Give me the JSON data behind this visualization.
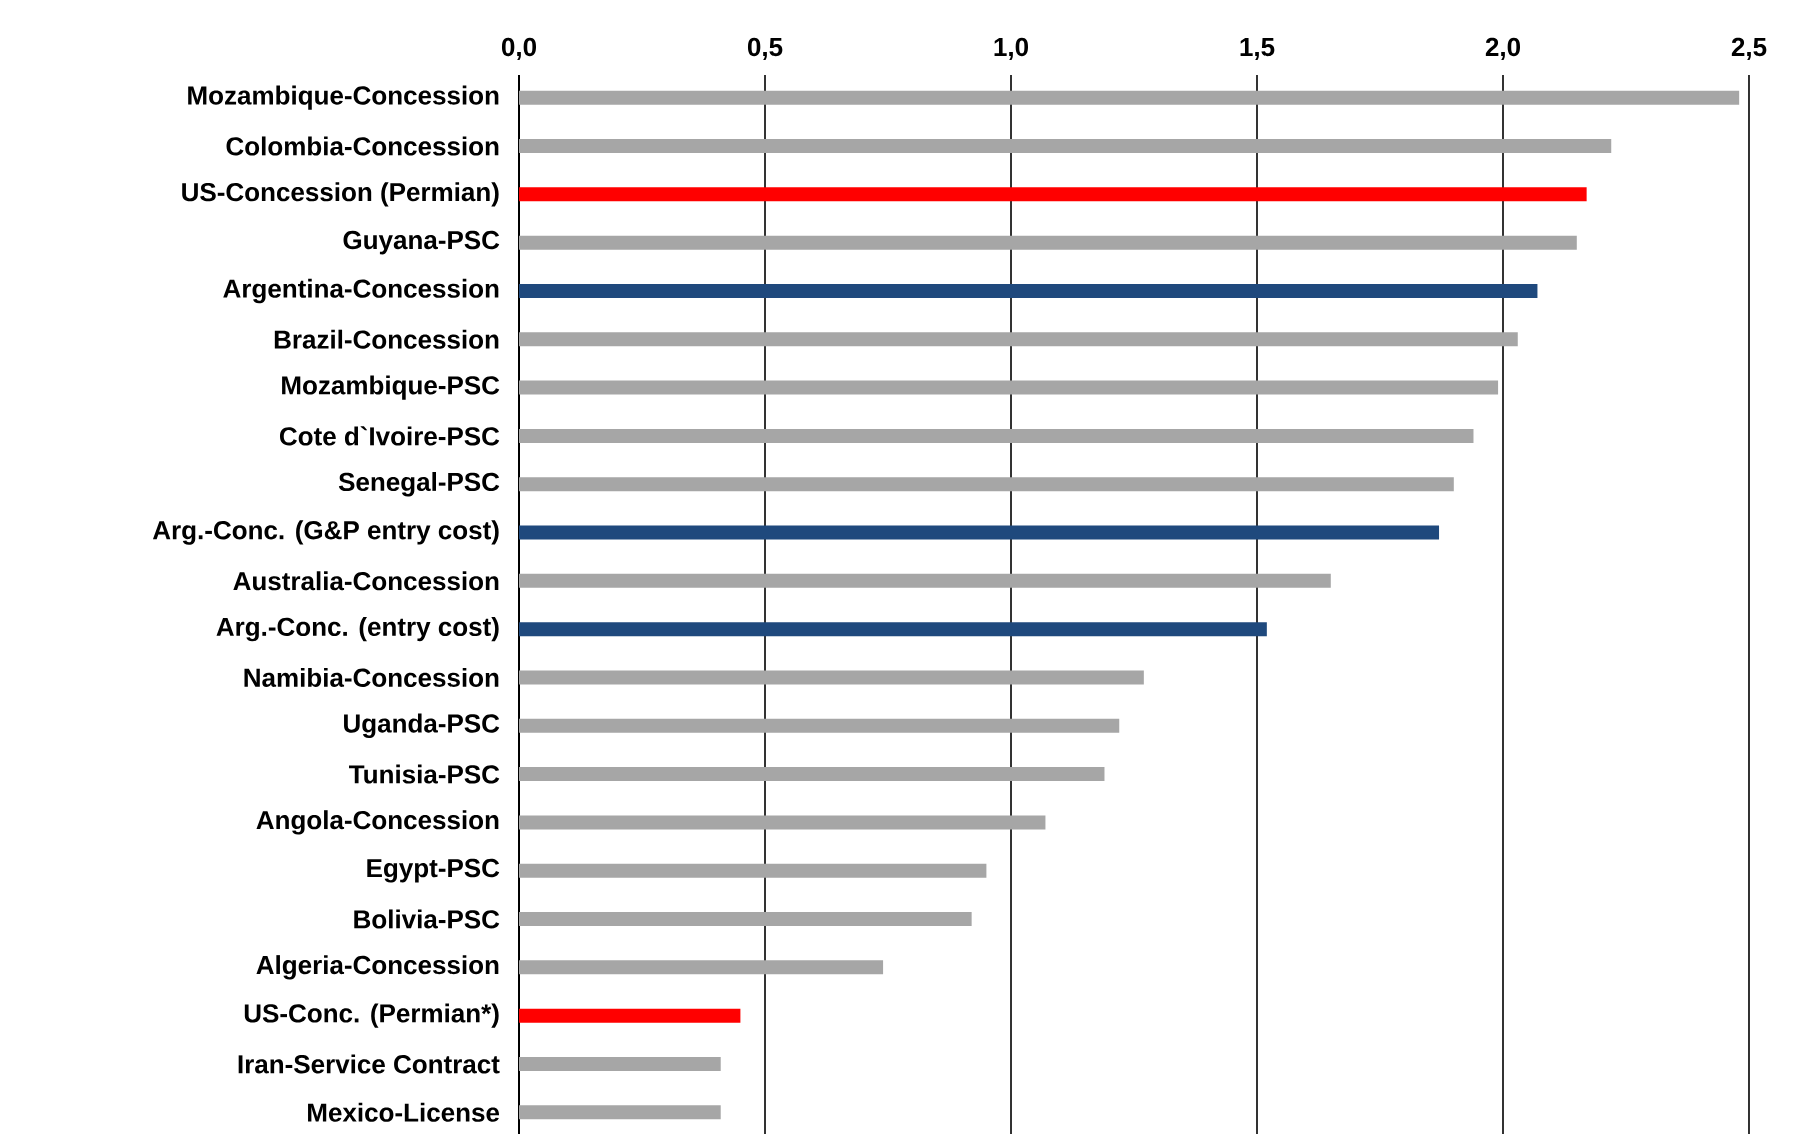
{
  "chart_data": {
    "type": "bar",
    "orientation": "horizontal",
    "categories": [
      "Mozambique-Concession",
      "Colombia-Concession",
      "US-Concession (Permian)",
      "Guyana-PSC",
      "Argentina-Concession",
      "Brazil-Concession",
      "Mozambique-PSC",
      "Cote d`Ivoire-PSC",
      "Senegal-PSC",
      "Arg.-Conc. (G&P entry cost)",
      "Australia-Concession",
      "Arg.-Conc. (entry cost)",
      "Namibia-Concession",
      "Uganda-PSC",
      "Tunisia-PSC",
      "Angola-Concession",
      "Egypt-PSC",
      "Bolivia-PSC",
      "Algeria-Concession",
      "US-Conc. (Permian*)",
      "Iran-Service Contract",
      "Mexico-License"
    ],
    "values": [
      2.48,
      2.22,
      2.17,
      2.15,
      2.07,
      2.03,
      1.99,
      1.94,
      1.9,
      1.87,
      1.65,
      1.52,
      1.27,
      1.22,
      1.19,
      1.07,
      0.95,
      0.92,
      0.74,
      0.45,
      0.41,
      0.41
    ],
    "colors": [
      "#a6a6a6",
      "#a6a6a6",
      "#ff0000",
      "#a6a6a6",
      "#1f497d",
      "#a6a6a6",
      "#a6a6a6",
      "#a6a6a6",
      "#a6a6a6",
      "#1f497d",
      "#a6a6a6",
      "#1f497d",
      "#a6a6a6",
      "#a6a6a6",
      "#a6a6a6",
      "#a6a6a6",
      "#a6a6a6",
      "#a6a6a6",
      "#a6a6a6",
      "#ff0000",
      "#a6a6a6",
      "#a6a6a6"
    ],
    "xlim": [
      0,
      2.5
    ],
    "xticks": [
      {
        "value": 0,
        "label": "0,0"
      },
      {
        "value": 0.5,
        "label": "0,5"
      },
      {
        "value": 1,
        "label": "1,0"
      },
      {
        "value": 1.5,
        "label": "1,5"
      },
      {
        "value": 2,
        "label": "2,0"
      },
      {
        "value": 2.5,
        "label": "2,5"
      }
    ],
    "grid": "x"
  }
}
